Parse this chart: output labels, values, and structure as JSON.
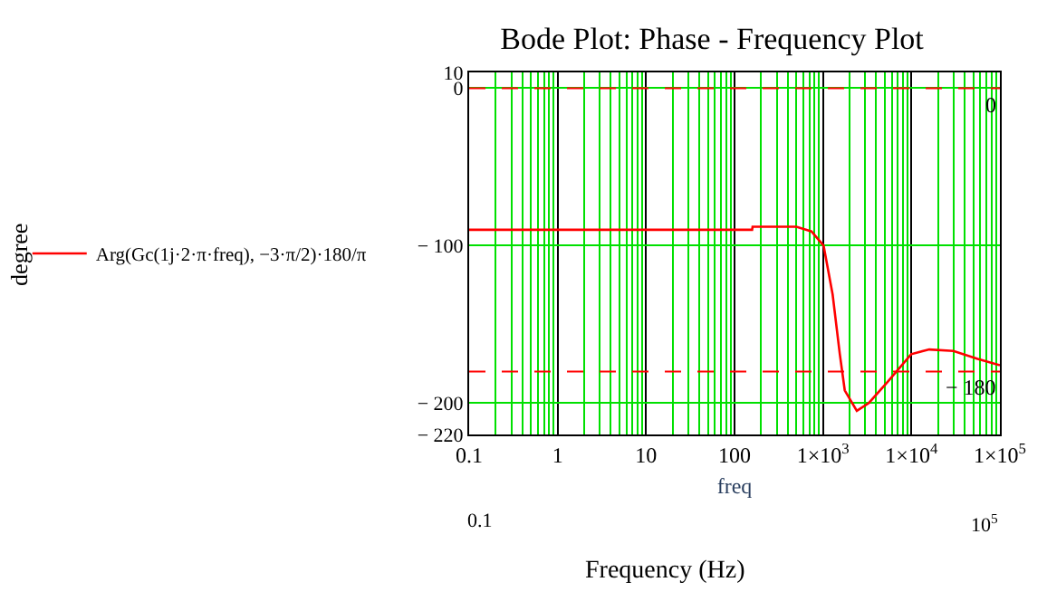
{
  "chart_data": {
    "type": "line",
    "title": "Bode Plot: Phase - Frequency Plot",
    "xlabel": "freq",
    "log": "x",
    "grid": true,
    "legend": "left",
    "marker": "none",
    "line_style": "solid",
    "x": [
      0.1,
      158,
      160,
      500,
      741,
      1016,
      1285,
      1550,
      1762,
      2411,
      3300,
      5300,
      9930,
      15900,
      29800,
      56000,
      100000
    ],
    "series": [
      {
        "name": "Arg(Gc(1j·2·π·freq), −3·π/2)·180/π",
        "color": "#ff0000",
        "values": [
          -90,
          -90,
          -88,
          -88,
          -91,
          -100,
          -131,
          -169,
          -192,
          -205,
          -200,
          -187,
          -169,
          -166,
          -167,
          -172,
          -176
        ]
      }
    ],
    "xlim": [
      0.1,
      100000
    ],
    "xticks": [
      0.1,
      1,
      10,
      100,
      {
        "value": 1000,
        "label": "1×10$^{3}$"
      },
      {
        "value": 10000,
        "label": "1×10$^{4}$"
      },
      {
        "value": 100000,
        "label": "1×10$^{5}$"
      }
    ],
    "ylim": [
      -220,
      10
    ],
    "yticks": [
      {
        "value": 10,
        "label": "10"
      },
      0,
      {
        "value": -100,
        "label": "− 100"
      },
      {
        "value": -200,
        "label": "− 200"
      },
      {
        "value": -220,
        "label": "− 220"
      }
    ],
    "ref_lines": [
      {
        "axis": "y",
        "value": 0,
        "label": "0",
        "color": "#ff0000",
        "line_style": "dashed"
      },
      {
        "axis": "y",
        "value": -180,
        "label": "− 180",
        "color": "#ff0000",
        "line_style": "dashed"
      }
    ],
    "annotations": [
      "0.1",
      "10$^{5}$",
      "Frequency (Hz)",
      "degree"
    ]
  }
}
